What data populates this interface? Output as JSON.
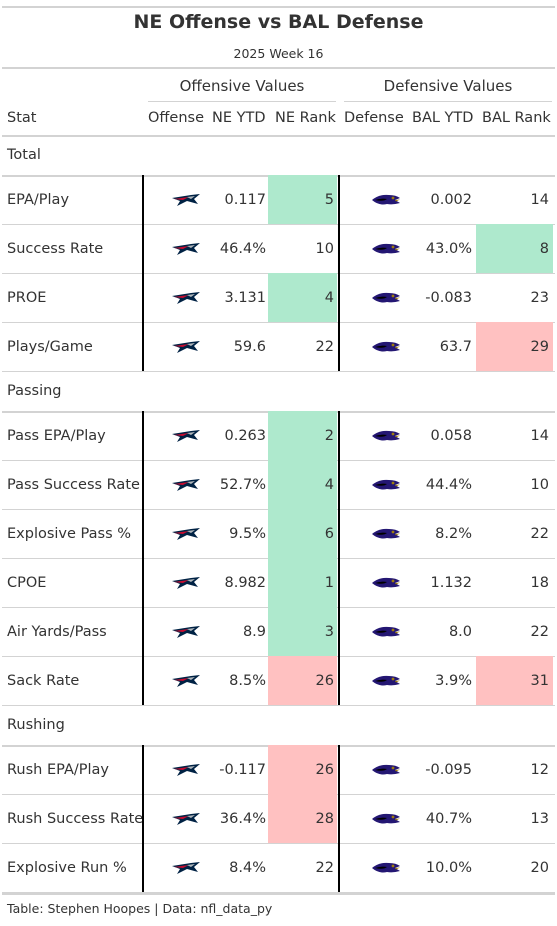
{
  "title": "NE Offense vs BAL Defense",
  "subtitle": "2025 Week 16",
  "spanners": {
    "offense": "Offensive Values",
    "defense": "Defensive Values"
  },
  "columns": [
    "Stat",
    "Offense",
    "NE YTD",
    "NE Rank",
    "Defense",
    "BAL YTD",
    "BAL Rank"
  ],
  "offense_logo": "new-england-patriots-logo",
  "defense_logo": "baltimore-ravens-logo",
  "colors": {
    "good": "#aee9cd",
    "bad": "#ffc1c1",
    "rule": "#d3d3d3",
    "divider": "#000000"
  },
  "groups": [
    {
      "name": "Total",
      "rows": [
        {
          "stat": "EPA/Play",
          "ne_ytd": "0.117",
          "ne_rank": "5",
          "ne_shade": "good",
          "bal_ytd": "0.002",
          "bal_rank": "14",
          "bal_shade": ""
        },
        {
          "stat": "Success Rate",
          "ne_ytd": "46.4%",
          "ne_rank": "10",
          "ne_shade": "",
          "bal_ytd": "43.0%",
          "bal_rank": "8",
          "bal_shade": "good"
        },
        {
          "stat": "PROE",
          "ne_ytd": "3.131",
          "ne_rank": "4",
          "ne_shade": "good",
          "bal_ytd": "-0.083",
          "bal_rank": "23",
          "bal_shade": ""
        },
        {
          "stat": "Plays/Game",
          "ne_ytd": "59.6",
          "ne_rank": "22",
          "ne_shade": "",
          "bal_ytd": "63.7",
          "bal_rank": "29",
          "bal_shade": "bad"
        }
      ]
    },
    {
      "name": "Passing",
      "rows": [
        {
          "stat": "Pass EPA/Play",
          "ne_ytd": "0.263",
          "ne_rank": "2",
          "ne_shade": "good",
          "bal_ytd": "0.058",
          "bal_rank": "14",
          "bal_shade": ""
        },
        {
          "stat": "Pass Success Rate",
          "ne_ytd": "52.7%",
          "ne_rank": "4",
          "ne_shade": "good",
          "bal_ytd": "44.4%",
          "bal_rank": "10",
          "bal_shade": ""
        },
        {
          "stat": "Explosive Pass %",
          "ne_ytd": "9.5%",
          "ne_rank": "6",
          "ne_shade": "good",
          "bal_ytd": "8.2%",
          "bal_rank": "22",
          "bal_shade": ""
        },
        {
          "stat": "CPOE",
          "ne_ytd": "8.982",
          "ne_rank": "1",
          "ne_shade": "good",
          "bal_ytd": "1.132",
          "bal_rank": "18",
          "bal_shade": ""
        },
        {
          "stat": "Air Yards/Pass",
          "ne_ytd": "8.9",
          "ne_rank": "3",
          "ne_shade": "good",
          "bal_ytd": "8.0",
          "bal_rank": "22",
          "bal_shade": ""
        },
        {
          "stat": "Sack Rate",
          "ne_ytd": "8.5%",
          "ne_rank": "26",
          "ne_shade": "bad",
          "bal_ytd": "3.9%",
          "bal_rank": "31",
          "bal_shade": "bad"
        }
      ]
    },
    {
      "name": "Rushing",
      "rows": [
        {
          "stat": "Rush EPA/Play",
          "ne_ytd": "-0.117",
          "ne_rank": "26",
          "ne_shade": "bad",
          "bal_ytd": "-0.095",
          "bal_rank": "12",
          "bal_shade": ""
        },
        {
          "stat": "Rush Success Rate",
          "ne_ytd": "36.4%",
          "ne_rank": "28",
          "ne_shade": "bad",
          "bal_ytd": "40.7%",
          "bal_rank": "13",
          "bal_shade": ""
        },
        {
          "stat": "Explosive Run %",
          "ne_ytd": "8.4%",
          "ne_rank": "22",
          "ne_shade": "",
          "bal_ytd": "10.0%",
          "bal_rank": "20",
          "bal_shade": ""
        }
      ]
    }
  ],
  "source": "Table: Stephen Hoopes | Data: nfl_data_py"
}
